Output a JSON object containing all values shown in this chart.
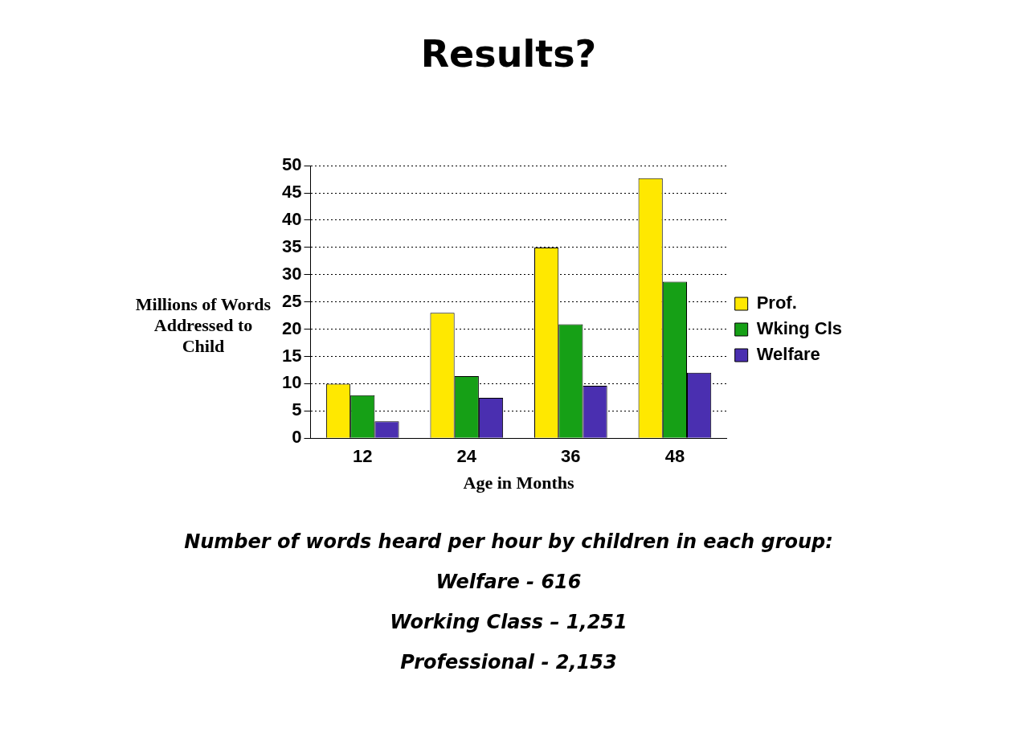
{
  "chart_data": {
    "type": "bar",
    "title": "Results?",
    "xlabel": "Age in Months",
    "ylabel": "Millions of Words Addressed to Child",
    "categories": [
      "12",
      "24",
      "36",
      "48"
    ],
    "series": [
      {
        "name": "Prof.",
        "color": "#ffe800",
        "values": [
          10,
          23,
          35,
          47.7
        ]
      },
      {
        "name": "Wking Cls",
        "color": "#16a016",
        "values": [
          7.9,
          11.4,
          20.9,
          28.7
        ]
      },
      {
        "name": "Welfare",
        "color": "#4a2fb0",
        "values": [
          3.1,
          7.4,
          9.6,
          12
        ]
      }
    ],
    "ylim": [
      0,
      50
    ],
    "yticks": [
      0,
      5,
      10,
      15,
      20,
      25,
      30,
      35,
      40,
      45,
      50
    ],
    "grid": "y",
    "legend": "right",
    "annotations": [
      "Number of words heard per hour by children in each group:",
      "Welfare - 616",
      "Working Class – 1,251",
      "Professional - 2,153"
    ]
  }
}
